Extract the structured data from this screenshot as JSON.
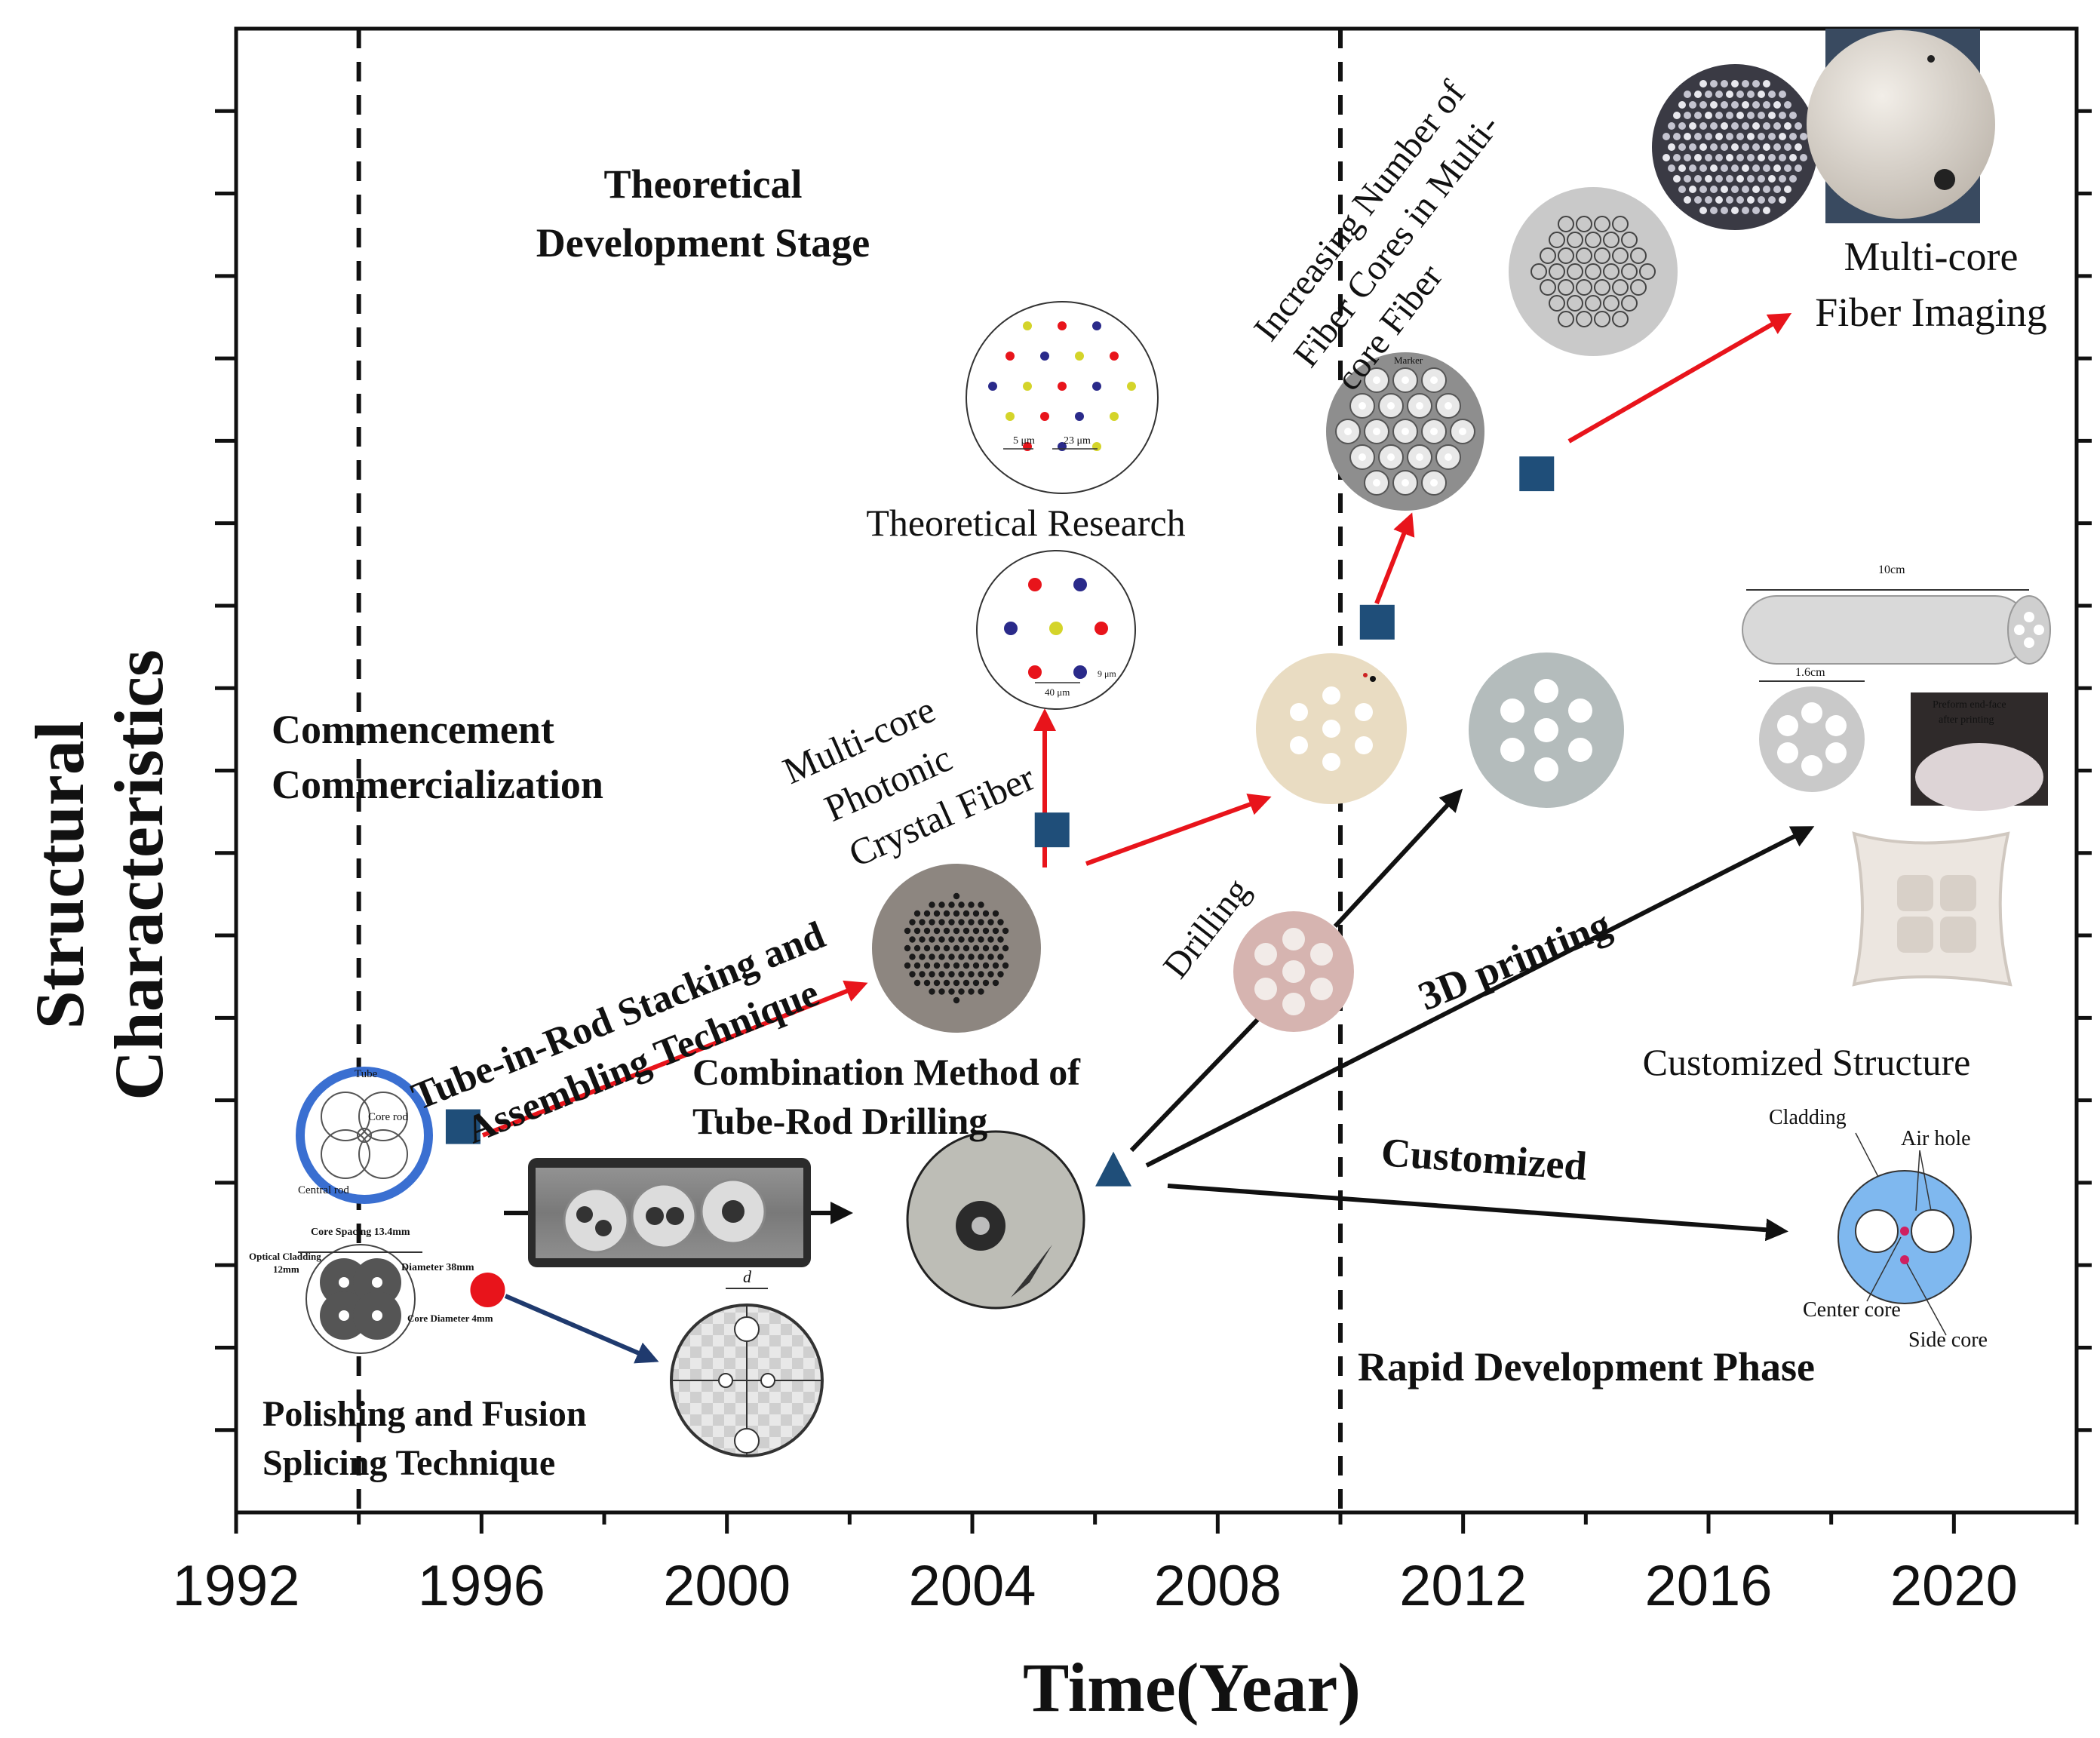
{
  "chart_data": {
    "type": "scatter",
    "xlabel": "Time(Year)",
    "ylabel_lines": [
      "Structural",
      "Characteristics"
    ],
    "xlim": [
      1992,
      2022
    ],
    "x_ticks": [
      "1992",
      "1996",
      "2000",
      "2004",
      "2008",
      "2012",
      "2016",
      "2020"
    ],
    "grid": false,
    "series": [
      {
        "marker": "square",
        "color": "#1f4e79",
        "points": [
          {
            "x": 1995.7,
            "y": 2.6
          },
          {
            "x": 2005.3,
            "y": 4.6
          },
          {
            "x": 2010.6,
            "y": 6.0
          },
          {
            "x": 2013.2,
            "y": 7.0
          }
        ]
      },
      {
        "marker": "circle",
        "color": "#e8141b",
        "points": [
          {
            "x": 1996.1,
            "y": 1.5
          }
        ]
      },
      {
        "marker": "triangle",
        "color": "#1f4e79",
        "points": [
          {
            "x": 2006.3,
            "y": 2.3
          }
        ]
      }
    ],
    "phase_dividers": [
      1994,
      2010
    ],
    "annotations": {
      "theoretical_stage": [
        "Theoretical",
        "Development Stage"
      ],
      "commercialization": [
        "Commencement",
        "Commercialization"
      ],
      "rapid_phase": "Rapid Development Phase",
      "tube_in_rod": [
        "Tube-in-Rod Stacking and",
        "Assembling Technique"
      ],
      "combination": [
        "Combination Method of",
        "Tube-Rod Drilling"
      ],
      "polishing": [
        "Polishing and Fusion",
        "Splicing Technique"
      ],
      "mc_pcf": [
        "Multi-core",
        "Photonic",
        "Crystal Fiber"
      ],
      "theoretical_research": "Theoretical Research",
      "increasing": [
        "Increasing Number of",
        "Fiber Cores in Multi-",
        "core Fiber"
      ],
      "mcf_imaging": [
        "Multi-core",
        "Fiber Imaging"
      ],
      "drilling": "Drilling",
      "printing_3d": "3D printing",
      "customized": "Customized",
      "customized_structure": "Customized Structure"
    },
    "figure_labels": {
      "tube": "Tube",
      "core_rod": "Core rod",
      "central_rod": "Central rod",
      "core_spacing": "Core Spacing  13.4mm",
      "optical_cladding": "Optical Cladding",
      "cladding_size": "12mm",
      "diameter": "Diameter  38mm",
      "core_diameter": "Core Diameter 4mm",
      "d": "d",
      "um5": "5 μm",
      "um23": "23 μm",
      "um9": "9 μm",
      "um40": "40 μm",
      "marker": "Marker",
      "cm10": "10cm",
      "cm16": "1.6cm",
      "preform_1": "Preform end-face",
      "preform_2": "after printing",
      "cladding": "Cladding",
      "air_hole": "Air hole",
      "center_core": "Center core",
      "side_core": "Side core"
    }
  }
}
